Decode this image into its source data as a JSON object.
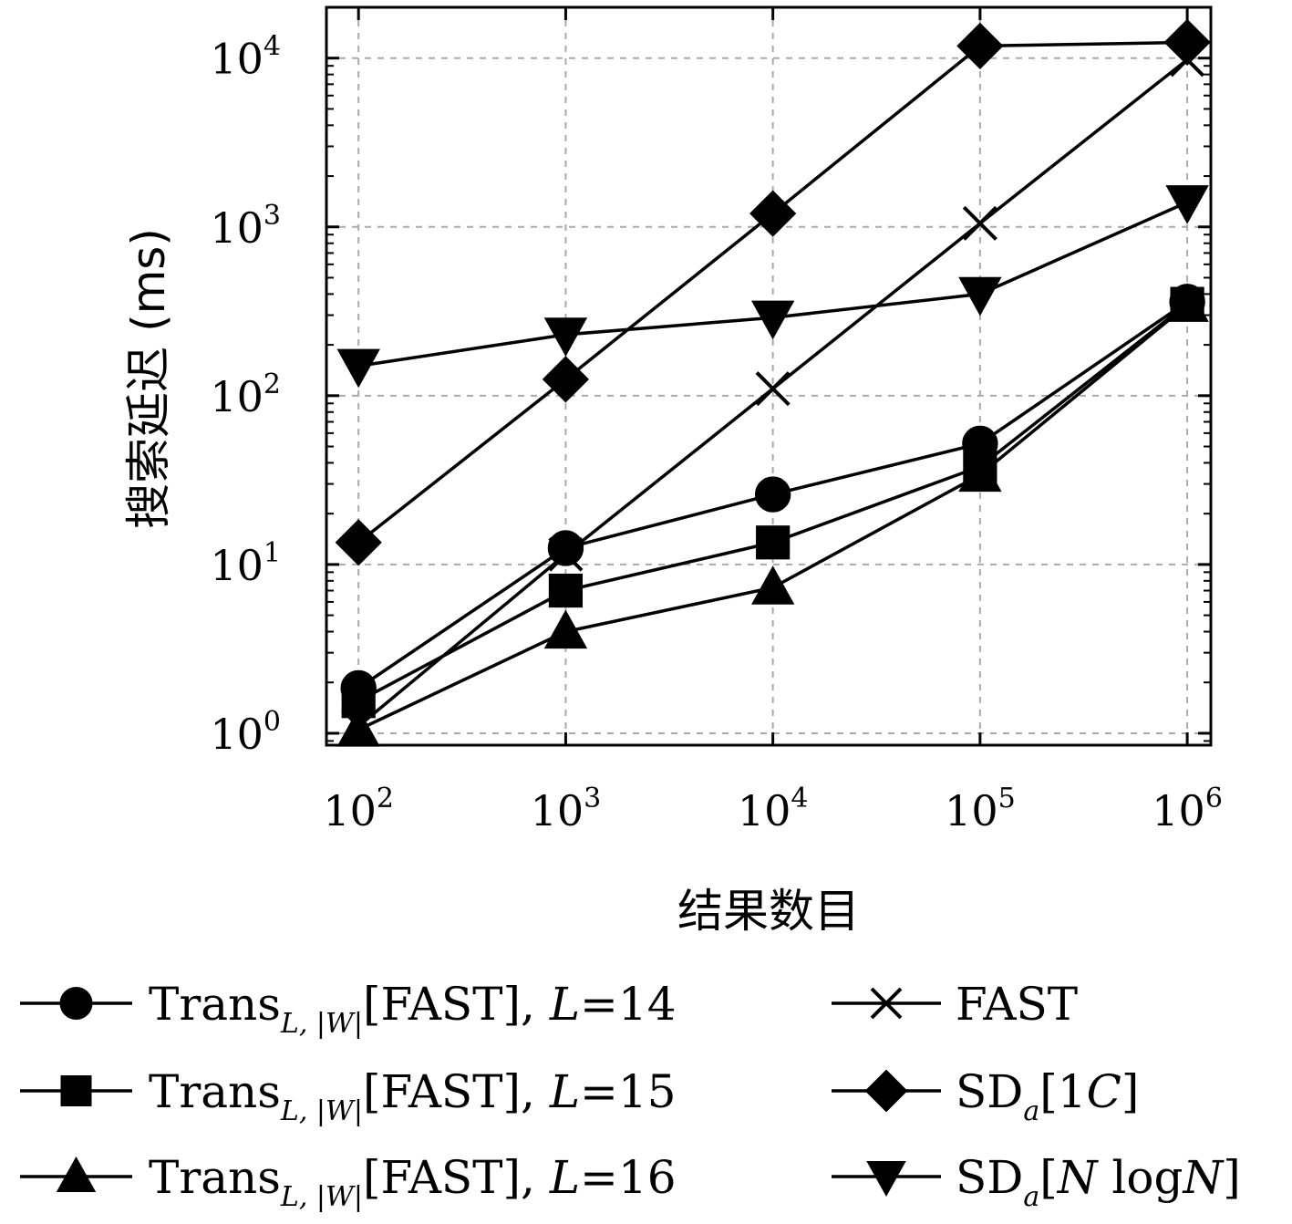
{
  "chart_data": {
    "type": "line",
    "title": "",
    "xlabel": "结果数目",
    "ylabel": "搜索延迟 (ms)",
    "xscale": "log",
    "yscale": "log",
    "xlim": [
      70,
      1300000
    ],
    "ylim": [
      0.85,
      20000
    ],
    "grid": true,
    "grid_style": "dashed",
    "legend_placement": "bottom",
    "x": [
      100,
      1000,
      10000,
      100000,
      1000000
    ],
    "x_tick_labels": [
      {
        "base": "10",
        "exp": "2"
      },
      {
        "base": "10",
        "exp": "3"
      },
      {
        "base": "10",
        "exp": "4"
      },
      {
        "base": "10",
        "exp": "5"
      },
      {
        "base": "10",
        "exp": "6"
      }
    ],
    "y_tick_labels": [
      {
        "value": 1,
        "base": "10",
        "exp": "0"
      },
      {
        "value": 10,
        "base": "10",
        "exp": "1"
      },
      {
        "value": 100,
        "base": "10",
        "exp": "2"
      },
      {
        "value": 1000,
        "base": "10",
        "exp": "3"
      },
      {
        "value": 10000,
        "base": "10",
        "exp": "4"
      }
    ],
    "series": [
      {
        "legend": {
          "main": "Trans",
          "sub": "L, |W|",
          "rest": "[FAST], ",
          "ital": "L",
          "tail": "=14"
        },
        "marker": "circle",
        "values": [
          1.85,
          12.5,
          26,
          52,
          360
        ]
      },
      {
        "legend": {
          "main": "Trans",
          "sub": "L, |W|",
          "rest": "[FAST], ",
          "ital": "L",
          "tail": "=15"
        },
        "marker": "square",
        "values": [
          1.55,
          7,
          13.5,
          38,
          350
        ]
      },
      {
        "legend": {
          "main": "Trans",
          "sub": "L, |W|",
          "rest": "[FAST], ",
          "ital": "L",
          "tail": "=16"
        },
        "marker": "triangle-up",
        "values": [
          1.05,
          4,
          7.3,
          34,
          345
        ]
      },
      {
        "legend": {
          "main": "FAST",
          "sub": "",
          "rest": "",
          "ital": "",
          "tail": ""
        },
        "marker": "x",
        "values": [
          1.1,
          11.5,
          110,
          1050,
          9800
        ]
      },
      {
        "legend": {
          "main": "SD",
          "sub": "a",
          "rest": "[1",
          "ital": "C",
          "tail": "]"
        },
        "marker": "diamond",
        "values": [
          13.5,
          125,
          1200,
          11800,
          12400
        ]
      },
      {
        "legend": {
          "main": "SD",
          "sub": "a",
          "rest": "[",
          "ital": "N",
          "tail": " log",
          "ital2": "N",
          "tail2": "]"
        },
        "marker": "triangle-down",
        "values": [
          150,
          230,
          290,
          400,
          1400
        ]
      }
    ]
  }
}
